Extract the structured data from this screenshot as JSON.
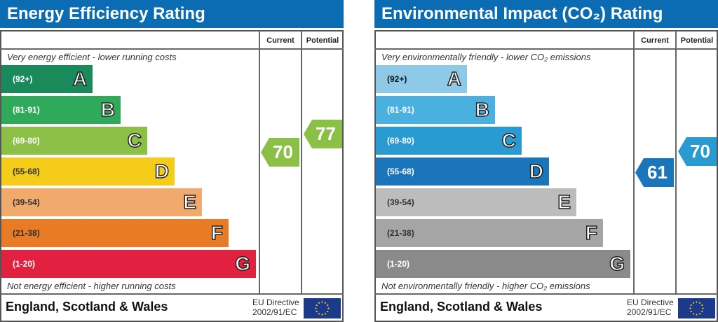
{
  "chart_data": [
    {
      "type": "bar",
      "title": "Energy Efficiency Rating",
      "columns": [
        "Current",
        "Potential"
      ],
      "top_note": "Very energy efficient - lower running costs",
      "bottom_note": "Not energy efficient - higher running costs",
      "bands": [
        {
          "letter": "A",
          "range": "(92+)",
          "color": "#1a8a5a"
        },
        {
          "letter": "B",
          "range": "(81-91)",
          "color": "#2eaa5a"
        },
        {
          "letter": "C",
          "range": "(69-80)",
          "color": "#8cbf45"
        },
        {
          "letter": "D",
          "range": "(55-68)",
          "color": "#f5cc19"
        },
        {
          "letter": "E",
          "range": "(39-54)",
          "color": "#f2a96c"
        },
        {
          "letter": "F",
          "range": "(21-38)",
          "color": "#ea7b26"
        },
        {
          "letter": "G",
          "range": "(1-20)",
          "color": "#e2203f"
        }
      ],
      "current": {
        "value": "70",
        "color": "#8cbf45"
      },
      "potential": {
        "value": "77",
        "color": "#8cbf45"
      },
      "footer": "England, Scotland & Wales",
      "eu_line1": "EU Directive",
      "eu_line2": "2002/91/EC"
    },
    {
      "type": "bar",
      "title": "Environmental Impact (CO₂) Rating",
      "columns": [
        "Current",
        "Potential"
      ],
      "top_note": "Very environmentally friendly - lower CO₂ emissions",
      "bottom_note": "Not environmentally friendly - higher CO₂ emissions",
      "bands": [
        {
          "letter": "A",
          "range": "(92+)",
          "color": "#8ecae8"
        },
        {
          "letter": "B",
          "range": "(81-91)",
          "color": "#4ab0e0"
        },
        {
          "letter": "C",
          "range": "(69-80)",
          "color": "#2a9ad3"
        },
        {
          "letter": "D",
          "range": "(55-68)",
          "color": "#1b75bb"
        },
        {
          "letter": "E",
          "range": "(39-54)",
          "color": "#bcbcbc"
        },
        {
          "letter": "F",
          "range": "(21-38)",
          "color": "#a5a5a5"
        },
        {
          "letter": "G",
          "range": "(1-20)",
          "color": "#8a8a8a"
        }
      ],
      "current": {
        "value": "61",
        "color": "#1b75bb"
      },
      "potential": {
        "value": "70",
        "color": "#2a9ad3"
      },
      "footer": "England, Scotland & Wales",
      "eu_line1": "EU Directive",
      "eu_line2": "2002/91/EC"
    }
  ]
}
